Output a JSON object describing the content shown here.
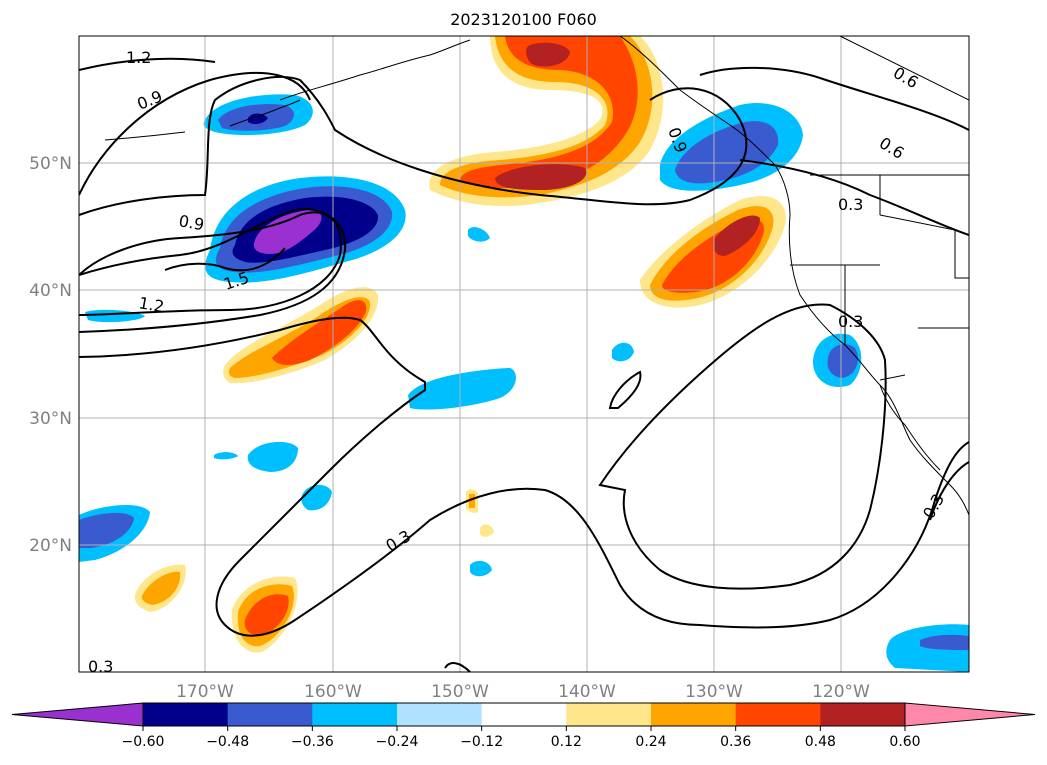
{
  "title": "2023120100 F060",
  "lat_labels": [
    "50°N",
    "40°N",
    "30°N",
    "20°N"
  ],
  "lon_labels": [
    "170°W",
    "160°W",
    "150°W",
    "140°W",
    "130°W",
    "120°W"
  ],
  "contour_labels": [
    "1.2",
    "0.9",
    "0.9",
    "1.5",
    "1.2",
    "0.9",
    "0.6",
    "0.6",
    "0.3",
    "0.3",
    "0.3",
    "0.3",
    "0.3"
  ],
  "colorbar": {
    "ticks": [
      "−0.60",
      "−0.48",
      "−0.36",
      "−0.24",
      "−0.12",
      "0.12",
      "0.24",
      "0.36",
      "0.48",
      "0.60"
    ],
    "colors": [
      "#9b30d0",
      "#00008b",
      "#3a5bd0",
      "#00bfff",
      "#b0e2ff",
      "#ffffff",
      "#ffe68a",
      "#ffa500",
      "#ff4500",
      "#b22222",
      "#ff88aa"
    ]
  },
  "colors": {
    "neg_strong": "#9b30d0",
    "neg_dark": "#00008b",
    "neg_mid": "#3a5bd0",
    "neg_light": "#00bfff",
    "neg_pale": "#b0e2ff",
    "pos_pale": "#ffe68a",
    "pos_light": "#ffa500",
    "pos_mid": "#ff4500",
    "pos_dark": "#b22222",
    "grid": "#b0b0b0"
  }
}
